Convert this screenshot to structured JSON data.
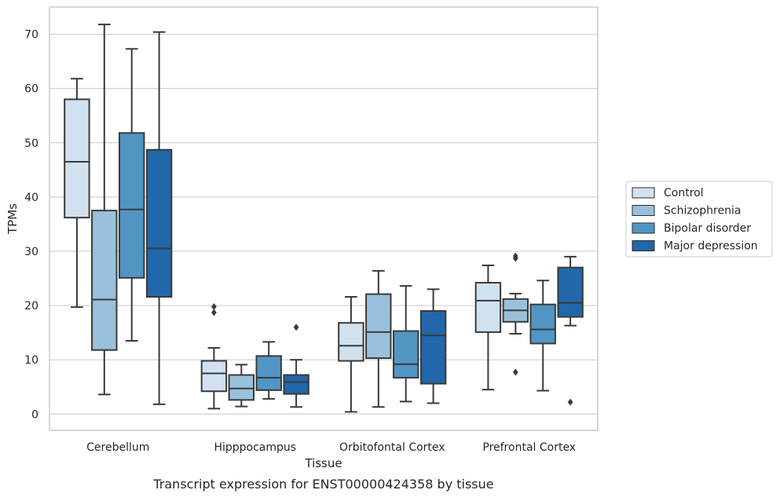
{
  "chart_data": {
    "type": "box",
    "title": "Transcript expression for ENST00000424358 by tissue",
    "xlabel": "Tissue",
    "ylabel": "TPMs",
    "ylim": [
      -3,
      75
    ],
    "yticks": [
      0,
      10,
      20,
      30,
      40,
      50,
      60,
      70
    ],
    "grid": "horizontal",
    "legend_position": "right",
    "categories": [
      "Cerebellum",
      "Hipppocampus",
      "Orbitofontal Cortex",
      "Prefrontal Cortex"
    ],
    "series": [
      {
        "name": "Control",
        "color": "#d1e1f0",
        "boxes": [
          {
            "whislo": 19.7,
            "q1": 36.2,
            "med": 46.5,
            "q3": 58.0,
            "whishi": 61.8,
            "fliers": []
          },
          {
            "whislo": 1.0,
            "q1": 4.2,
            "med": 7.5,
            "q3": 9.8,
            "whishi": 12.2,
            "fliers": [
              18.7,
              19.8
            ]
          },
          {
            "whislo": 0.4,
            "q1": 9.8,
            "med": 12.6,
            "q3": 16.8,
            "whishi": 21.6,
            "fliers": []
          },
          {
            "whislo": 4.5,
            "q1": 15.1,
            "med": 20.9,
            "q3": 24.2,
            "whishi": 27.4,
            "fliers": []
          }
        ]
      },
      {
        "name": "Schizophrenia",
        "color": "#9ac1db",
        "boxes": [
          {
            "whislo": 3.6,
            "q1": 11.8,
            "med": 21.1,
            "q3": 37.5,
            "whishi": 71.8,
            "fliers": []
          },
          {
            "whislo": 1.4,
            "q1": 2.6,
            "med": 4.7,
            "q3": 7.2,
            "whishi": 9.1,
            "fliers": []
          },
          {
            "whislo": 1.3,
            "q1": 10.3,
            "med": 15.1,
            "q3": 22.1,
            "whishi": 26.4,
            "fliers": []
          },
          {
            "whislo": 14.8,
            "q1": 17.0,
            "med": 19.1,
            "q3": 21.2,
            "whishi": 22.2,
            "fliers": [
              7.7,
              28.7,
              29.1
            ]
          }
        ]
      },
      {
        "name": "Bipolar disorder",
        "color": "#5195c4",
        "boxes": [
          {
            "whislo": 13.5,
            "q1": 25.1,
            "med": 37.7,
            "q3": 51.8,
            "whishi": 67.3,
            "fliers": []
          },
          {
            "whislo": 2.8,
            "q1": 4.4,
            "med": 6.7,
            "q3": 10.7,
            "whishi": 13.3,
            "fliers": []
          },
          {
            "whislo": 2.3,
            "q1": 6.7,
            "med": 9.2,
            "q3": 15.3,
            "whishi": 23.6,
            "fliers": []
          },
          {
            "whislo": 4.3,
            "q1": 13.0,
            "med": 15.6,
            "q3": 20.2,
            "whishi": 24.6,
            "fliers": []
          }
        ]
      },
      {
        "name": "Major depression",
        "color": "#2267a9",
        "boxes": [
          {
            "whislo": 1.8,
            "q1": 21.6,
            "med": 30.5,
            "q3": 48.7,
            "whishi": 70.4,
            "fliers": []
          },
          {
            "whislo": 1.3,
            "q1": 3.7,
            "med": 5.9,
            "q3": 7.2,
            "whishi": 10.0,
            "fliers": [
              16.0
            ]
          },
          {
            "whislo": 2.0,
            "q1": 5.6,
            "med": 14.5,
            "q3": 19.0,
            "whishi": 23.0,
            "fliers": []
          },
          {
            "whislo": 16.3,
            "q1": 17.9,
            "med": 20.5,
            "q3": 27.0,
            "whishi": 29.0,
            "fliers": [
              2.2
            ]
          }
        ]
      }
    ]
  }
}
